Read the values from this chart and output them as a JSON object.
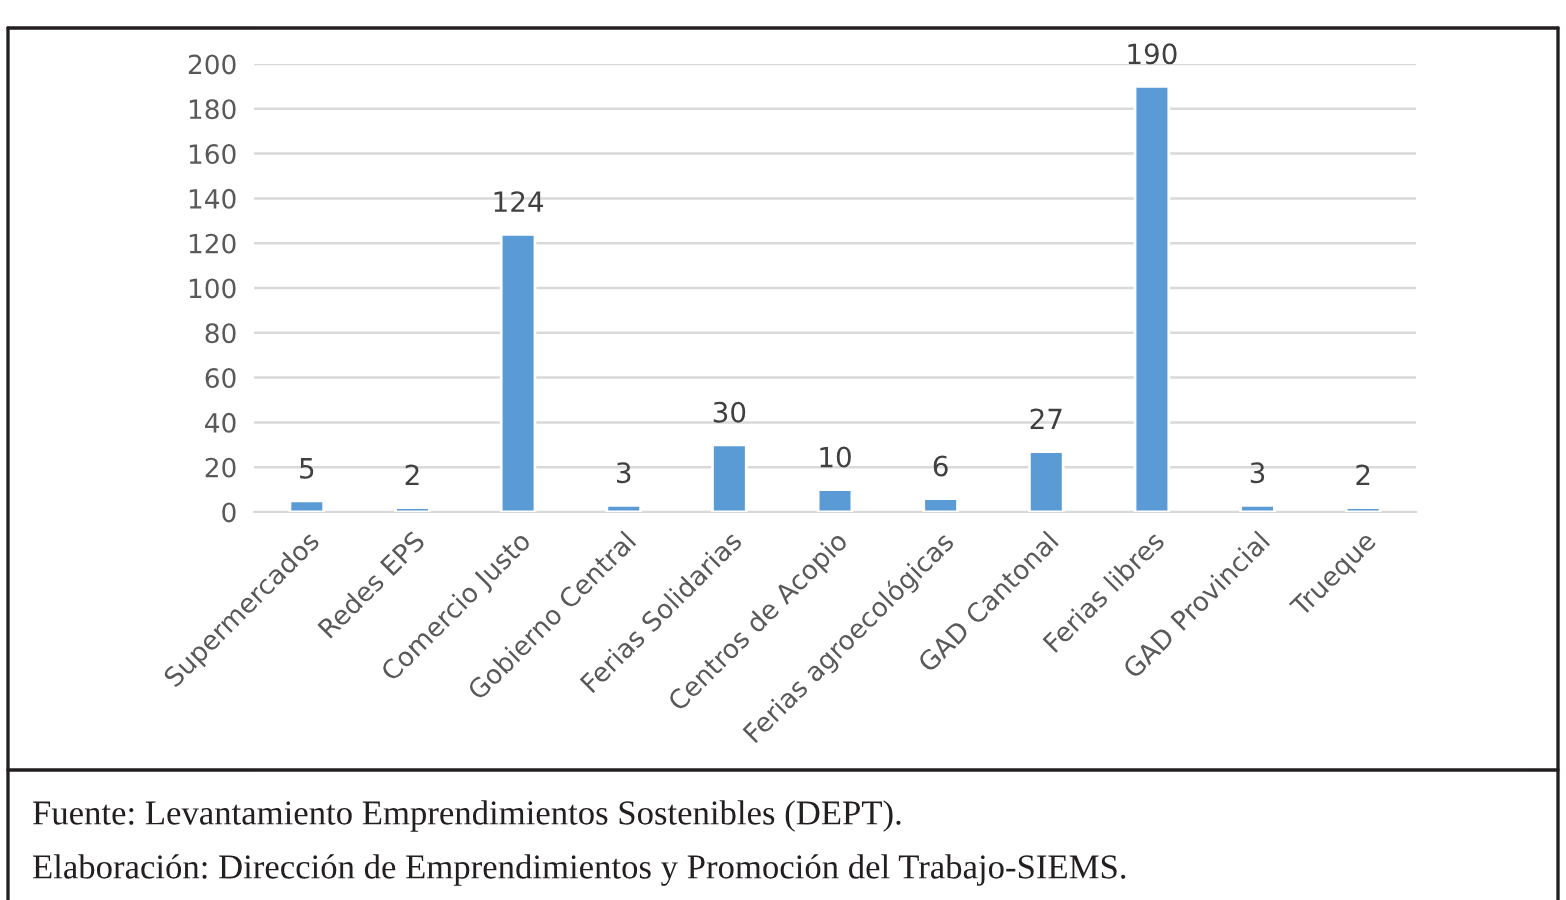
{
  "chart_data": {
    "type": "bar",
    "categories": [
      "Supermercados",
      "Redes EPS",
      "Comercio Justo",
      "Gobierno Central",
      "Ferias Solidarias",
      "Centros de Acopio",
      "Ferias agroecológicas",
      "GAD Cantonal",
      "Ferias libres",
      "GAD Provincial",
      "Trueque"
    ],
    "values": [
      5,
      2,
      124,
      3,
      30,
      10,
      6,
      27,
      190,
      3,
      2
    ],
    "color": "#5b9bd5",
    "ylim": [
      0,
      200
    ],
    "yticks": [
      0,
      20,
      40,
      60,
      80,
      100,
      120,
      140,
      160,
      180,
      200
    ],
    "grid": "y",
    "data_labels": true,
    "legend": false,
    "annotations": [
      "Fuente: Levantamiento Emprendimientos Sostenibles (DEPT).",
      "Elaboración: Dirección de Emprendimientos y Promoción del Trabajo-SIEMS."
    ]
  }
}
